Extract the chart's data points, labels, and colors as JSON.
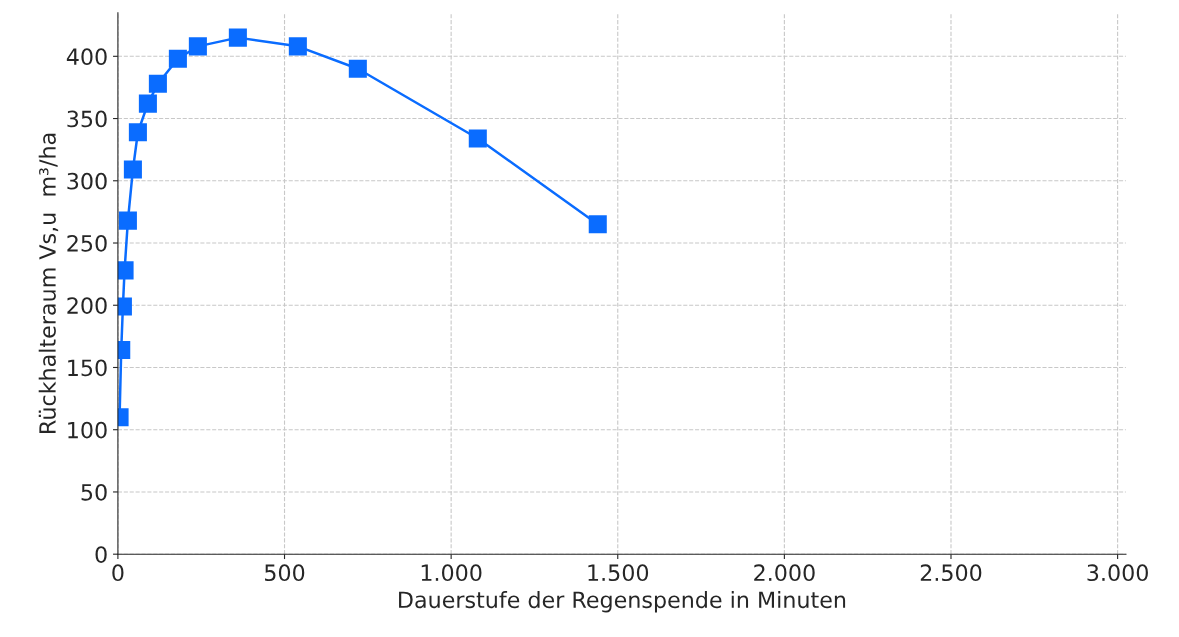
{
  "chart_data": {
    "type": "line",
    "xlabel": "Dauerstufe der Regenspende in Minuten",
    "ylabel": "Rückhalteraum Vs,u  m³/ha",
    "x": [
      5,
      10,
      15,
      20,
      30,
      45,
      60,
      90,
      120,
      180,
      240,
      360,
      540,
      720,
      1080,
      1440
    ],
    "series": [
      {
        "color": "#0a6cff",
        "values": [
          110,
          164,
          199,
          228,
          268,
          309,
          339,
          362,
          378,
          398,
          408,
          415,
          408,
          390,
          334,
          265
        ]
      }
    ],
    "xlim": [
      0,
      3025
    ],
    "ylim": [
      0,
      435
    ],
    "xticks": [
      0,
      500,
      {
        "value": 1000,
        "label": "1.000"
      },
      {
        "value": 1500,
        "label": "1.500"
      },
      {
        "value": 2000,
        "label": "2.000"
      },
      {
        "value": 2500,
        "label": "2.500"
      },
      {
        "value": 3000,
        "label": "3.000"
      }
    ],
    "yticks": [
      0,
      50,
      100,
      150,
      200,
      250,
      300,
      350,
      400
    ],
    "grid": true,
    "marker": "square",
    "line_style": "solid"
  }
}
